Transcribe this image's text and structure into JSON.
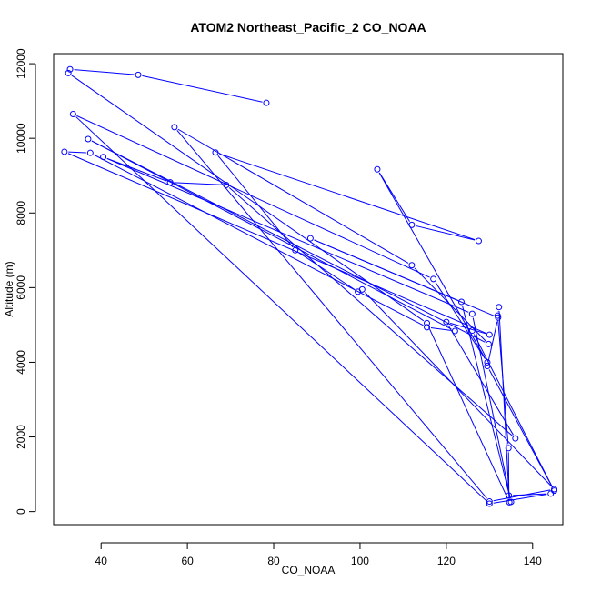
{
  "chart_data": {
    "type": "line",
    "title": "ATOM2 Northeast_Pacific_2 CO_NOAA",
    "xlabel": "CO_NOAA",
    "ylabel": "Altitude (m)",
    "xlim": [
      29,
      147
    ],
    "ylim": [
      -350,
      12270
    ],
    "xticks": [
      "40",
      "60",
      "80",
      "100",
      "120",
      "140"
    ],
    "yticks": [
      "0",
      "2000",
      "4000",
      "6000",
      "8000",
      "10000",
      "12000"
    ],
    "grid": false,
    "legend": "none",
    "color": "#0000ff",
    "series": [
      {
        "x": [
          78.3,
          48.6,
          32.8,
          32.4,
          115.5,
          134.6,
          132.2,
          131.9,
          134.4,
          134.5,
          144.2,
          130.0,
          33.5,
          117.0,
          129.5,
          104.0,
          112.0,
          127.5,
          66.5,
          85.0,
          99.5,
          100.5,
          145.0,
          130.0,
          57.0,
          112.0,
          129.8,
          37.0,
          122.0,
          115.5,
          37.5,
          31.5,
          130.0,
          120.0,
          136.0,
          69.0,
          56.0,
          40.5,
          126.0,
          135.0,
          123.5,
          88.5,
          132.0,
          129.5,
          145.0,
          126.0
        ],
        "y": [
          10950,
          11700,
          11850,
          11750,
          5050,
          250,
          5480,
          5250,
          1700,
          430,
          480,
          210,
          10650,
          6230,
          4000,
          9170,
          7680,
          7250,
          9620,
          7000,
          5890,
          5950,
          600,
          270,
          10300,
          6600,
          4490,
          9980,
          4840,
          4940,
          9610,
          9640,
          4740,
          5080,
          1960,
          8750,
          8820,
          9500,
          5300,
          260,
          5620,
          7320,
          5200,
          3900,
          560,
          4850
        ]
      }
    ]
  }
}
